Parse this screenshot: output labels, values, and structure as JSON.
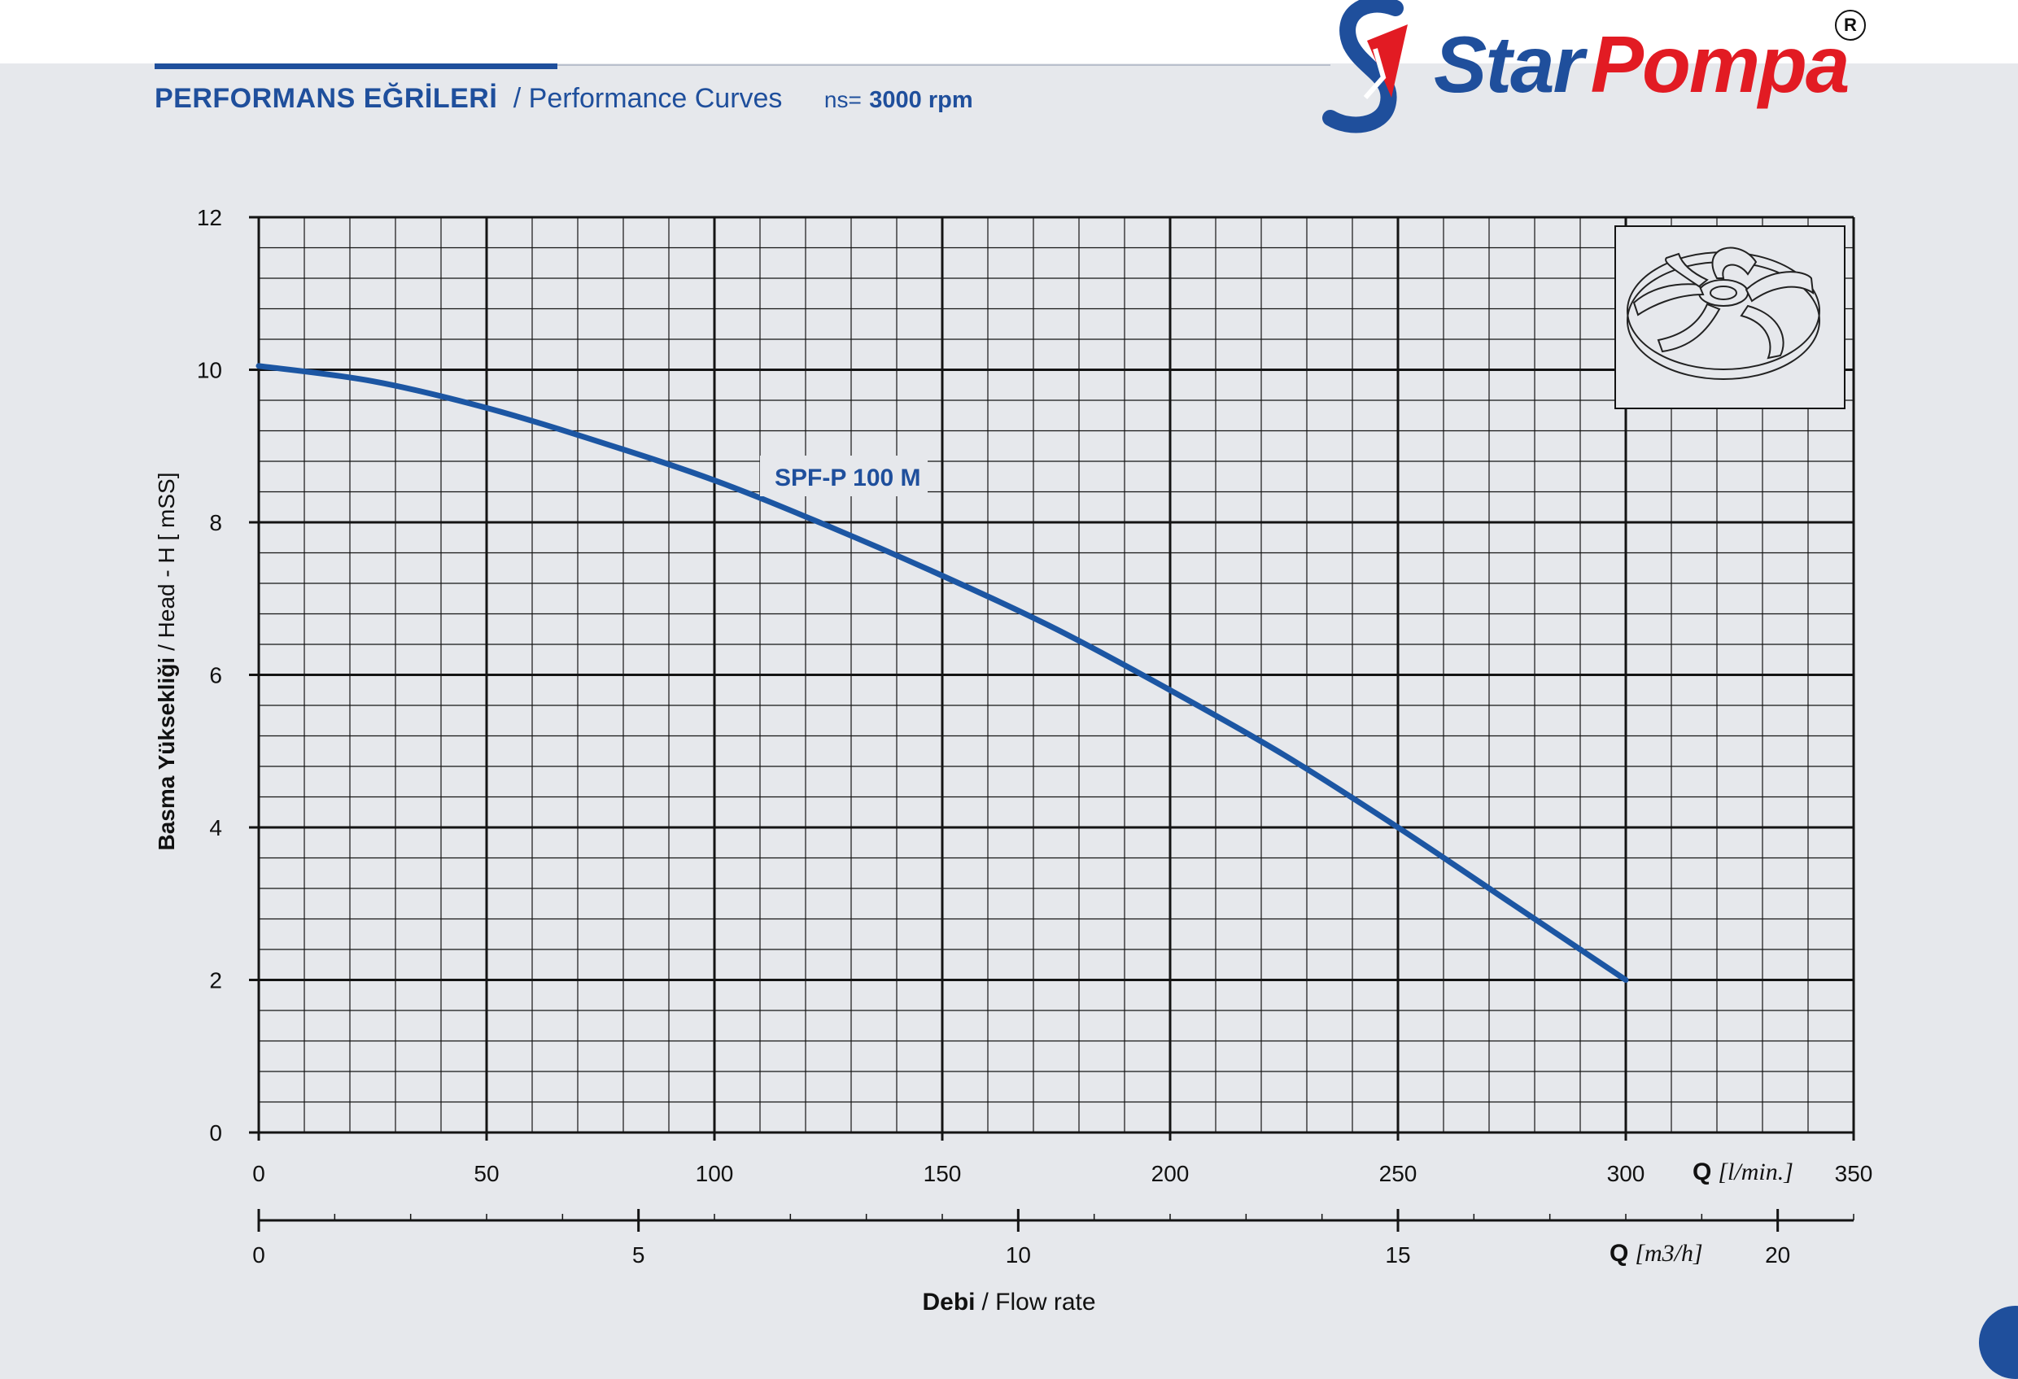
{
  "header": {
    "title_tr": "PERFORMANS EĞRİLERİ",
    "title_en": "/ Performance Curves",
    "ns_label": "ns=",
    "rpm": "3000 rpm"
  },
  "brand": {
    "name_a": "Star",
    "name_b": "Pompa",
    "registered": "R"
  },
  "colors": {
    "brand_blue": "#1f4f9c",
    "brand_red": "#e21b23",
    "curve": "#1c56a3",
    "grid": "#141414",
    "background": "#e6e8ec"
  },
  "icons": {
    "logo": "star-pompa-logo-icon",
    "impeller": "impeller-icon"
  },
  "chart_data": {
    "type": "line",
    "title": "",
    "xlabel": "Debi / Flow rate",
    "xlabel_bold": "Debi",
    "xlabel_rest": "/ Flow rate",
    "ylabel": "Basma Yüksekliği / Head - H [ mSS]",
    "ylabel_bold": "Basma Yüksekliği",
    "ylabel_rest": "/ Head - H [ mSS]",
    "x_unit_primary": "Q [l/min.]",
    "x_unit_primary_q": "Q",
    "x_unit_primary_unit": "[l/min.]",
    "x_unit_secondary": "Q [m3/h]",
    "x_unit_secondary_q": "Q",
    "x_unit_secondary_unit": "[m3/h]",
    "xlim": [
      0,
      350
    ],
    "ylim": [
      0,
      12
    ],
    "x_ticks": [
      0,
      50,
      100,
      150,
      200,
      250,
      300,
      350
    ],
    "x_tick_labels": [
      "0",
      "50",
      "100",
      "150",
      "200",
      "250",
      "300",
      "350"
    ],
    "y_ticks": [
      0,
      2,
      4,
      6,
      8,
      10,
      12
    ],
    "y_tick_labels": [
      "0",
      "2",
      "4",
      "6",
      "8",
      "10",
      "12"
    ],
    "secondary_ticks": [
      0,
      5,
      10,
      15,
      20
    ],
    "secondary_tick_labels": [
      "0",
      "5",
      "10",
      "15",
      "20"
    ],
    "secondary_xlim": [
      0,
      21
    ],
    "grid": true,
    "series": [
      {
        "name": "SPF-P 100 M",
        "x": [
          0,
          25,
          50,
          75,
          100,
          125,
          150,
          175,
          200,
          225,
          250,
          275,
          300
        ],
        "y": [
          10.05,
          9.85,
          9.5,
          9.05,
          8.55,
          7.95,
          7.3,
          6.6,
          5.8,
          4.95,
          4.0,
          3.0,
          2.0
        ]
      }
    ]
  }
}
